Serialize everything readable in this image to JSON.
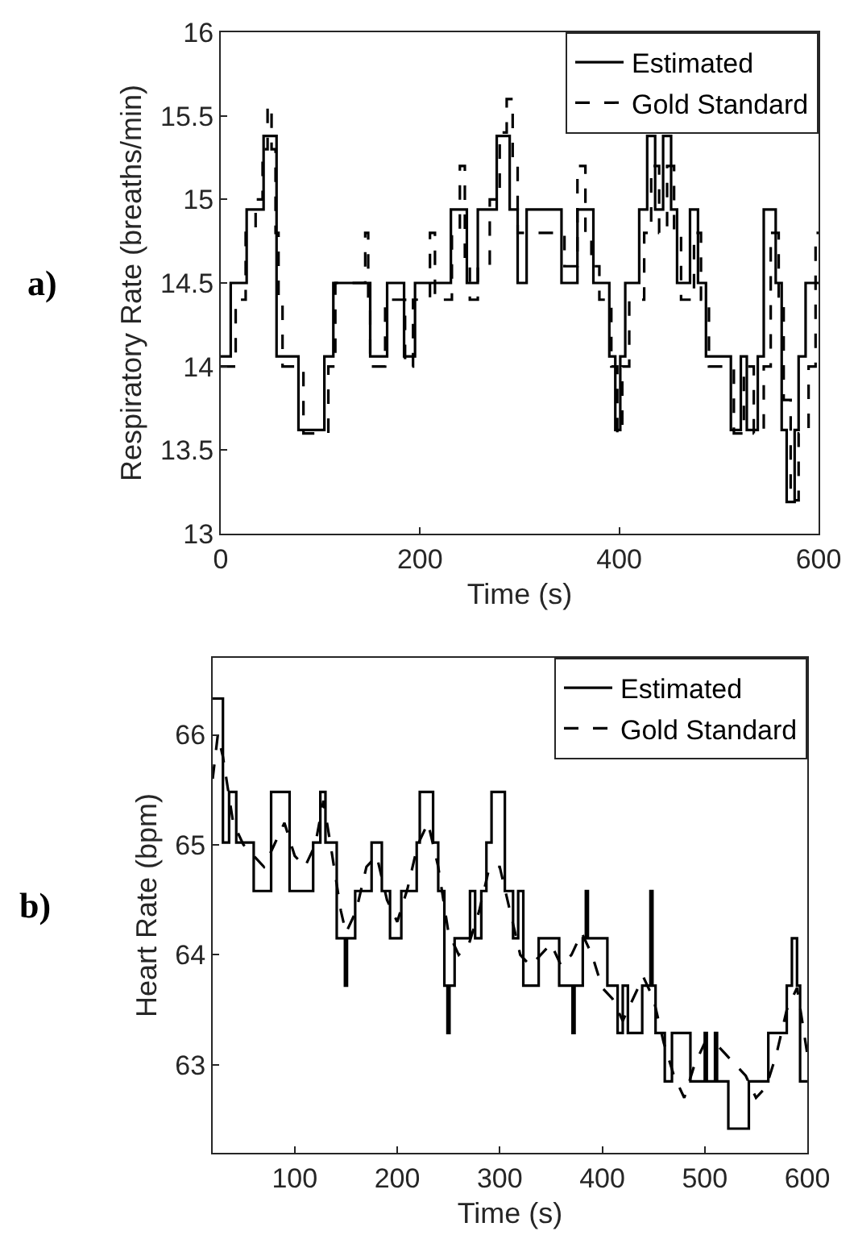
{
  "chart_data": [
    {
      "type": "step",
      "xlabel": "Time (s)",
      "ylabel": "Respiratory Rate (breaths/min)",
      "annotations": [
        "a)"
      ],
      "xlim": [
        0,
        600
      ],
      "xticks": [
        0,
        200,
        400,
        600
      ],
      "ylim": [
        13,
        16
      ],
      "yticks": [
        13,
        13.5,
        14,
        14.5,
        15,
        15.5,
        16
      ],
      "grid": false,
      "legend": "top right",
      "series": [
        {
          "name": "Estimated",
          "color": "#000000",
          "line_style": "solid",
          "x": [
            0,
            10,
            26,
            43,
            56,
            78,
            104,
            113,
            150,
            167,
            184,
            195,
            231,
            247,
            258,
            277,
            290,
            298,
            307,
            342,
            358,
            374,
            390,
            396,
            401,
            406,
            420,
            428,
            436,
            444,
            452,
            458,
            471,
            479,
            487,
            512,
            522,
            528,
            539,
            545,
            557,
            563,
            568,
            576,
            580,
            587,
            600
          ],
          "values": [
            14.06,
            14.5,
            14.94,
            15.38,
            14.06,
            13.62,
            14.06,
            14.5,
            14.06,
            14.5,
            14.06,
            14.5,
            14.94,
            14.5,
            14.94,
            15.38,
            14.94,
            14.5,
            14.94,
            14.5,
            14.94,
            14.5,
            14.06,
            13.62,
            14.06,
            14.5,
            14.94,
            15.38,
            14.94,
            15.38,
            14.94,
            14.5,
            14.94,
            14.5,
            14.06,
            13.62,
            14.06,
            13.62,
            14.06,
            14.94,
            14.5,
            13.62,
            13.19,
            13.62,
            14.06,
            14.5,
            14.5
          ]
        },
        {
          "name": "Gold Standard",
          "color": "#000000",
          "line_style": "dashed",
          "x": [
            0,
            15,
            25,
            35,
            42,
            47,
            51,
            55,
            58,
            62,
            83,
            108,
            115,
            145,
            148,
            150,
            165,
            185,
            193,
            210,
            215,
            232,
            240,
            245,
            250,
            258,
            270,
            280,
            287,
            293,
            298,
            345,
            358,
            366,
            372,
            380,
            392,
            398,
            403,
            410,
            425,
            432,
            440,
            448,
            455,
            462,
            475,
            482,
            490,
            515,
            525,
            535,
            545,
            552,
            560,
            565,
            572,
            580,
            590,
            597,
            600
          ],
          "values": [
            14.0,
            14.4,
            14.8,
            15.0,
            15.3,
            15.56,
            15.3,
            14.8,
            14.4,
            14.0,
            13.6,
            14.0,
            14.5,
            14.8,
            14.4,
            14.0,
            14.4,
            14.0,
            14.4,
            14.8,
            14.4,
            14.8,
            15.2,
            14.6,
            14.4,
            14.6,
            15.0,
            15.4,
            15.6,
            15.2,
            14.8,
            14.6,
            15.2,
            14.8,
            14.6,
            14.4,
            14.0,
            13.6,
            14.0,
            14.4,
            14.8,
            15.2,
            14.8,
            15.2,
            14.8,
            14.4,
            14.8,
            14.4,
            14.0,
            13.6,
            14.0,
            13.6,
            14.0,
            14.8,
            14.4,
            13.8,
            13.2,
            13.6,
            14.0,
            14.8,
            14.8
          ]
        }
      ]
    },
    {
      "type": "line",
      "xlabel": "Time (s)",
      "ylabel": "Heart Rate (bpm)",
      "annotations": [
        "b)"
      ],
      "xlim": [
        20,
        600
      ],
      "xticks": [
        100,
        200,
        300,
        400,
        500,
        600
      ],
      "ylim": [
        62.2,
        66.7
      ],
      "yticks": [
        63,
        64,
        65,
        66
      ],
      "grid": false,
      "legend": "top right",
      "series": [
        {
          "name": "Estimated",
          "color": "#000000",
          "line_style": "solid",
          "type": "step",
          "x": [
            20,
            30,
            36,
            43,
            60,
            77,
            95,
            118,
            125,
            130,
            141,
            149,
            151,
            159,
            175,
            185,
            193,
            204,
            219,
            222,
            235,
            240,
            246,
            249,
            251,
            256,
            271,
            276,
            282,
            287,
            292,
            305,
            313,
            318,
            323,
            338,
            358,
            371,
            373,
            381,
            384,
            386,
            405,
            415,
            420,
            425,
            439,
            447,
            449,
            452,
            461,
            468,
            486,
            500,
            502,
            510,
            512,
            523,
            543,
            562,
            580,
            585,
            590,
            593,
            596,
            600
          ],
          "values": [
            66.33,
            65.02,
            65.48,
            65.02,
            64.58,
            65.48,
            64.58,
            65.02,
            65.48,
            65.02,
            64.15,
            63.72,
            64.15,
            64.58,
            65.02,
            64.58,
            64.15,
            64.58,
            65.02,
            65.48,
            65.02,
            64.58,
            63.72,
            63.29,
            63.72,
            64.15,
            64.58,
            64.15,
            64.58,
            65.02,
            65.48,
            64.58,
            64.15,
            64.58,
            63.72,
            64.15,
            63.72,
            63.29,
            63.72,
            64.15,
            64.58,
            64.15,
            63.72,
            63.29,
            63.72,
            63.29,
            63.72,
            64.58,
            63.72,
            63.29,
            62.85,
            63.29,
            62.85,
            63.29,
            62.85,
            63.29,
            62.85,
            62.42,
            62.85,
            63.29,
            63.72,
            64.15,
            63.72,
            62.85,
            62.85,
            62.85
          ]
        },
        {
          "name": "Gold Standard",
          "color": "#000000",
          "line_style": "dashed",
          "x": [
            20,
            25,
            30,
            40,
            50,
            60,
            70,
            80,
            90,
            100,
            110,
            120,
            128,
            135,
            145,
            150,
            160,
            170,
            180,
            190,
            200,
            210,
            220,
            230,
            240,
            250,
            260,
            270,
            280,
            290,
            300,
            310,
            320,
            330,
            340,
            350,
            360,
            370,
            380,
            390,
            400,
            410,
            420,
            430,
            440,
            450,
            460,
            470,
            480,
            490,
            500,
            510,
            520,
            530,
            540,
            550,
            560,
            570,
            580,
            590,
            600
          ],
          "values": [
            65.6,
            66.0,
            65.8,
            65.2,
            65.0,
            64.9,
            64.8,
            65.0,
            65.2,
            64.9,
            64.8,
            65.0,
            65.4,
            65.0,
            64.4,
            64.2,
            64.4,
            64.8,
            64.9,
            64.5,
            64.3,
            64.6,
            65.0,
            65.2,
            64.8,
            64.2,
            64.0,
            64.1,
            64.4,
            64.8,
            64.8,
            64.4,
            64.0,
            63.9,
            64.0,
            64.1,
            63.9,
            64.0,
            64.2,
            64.0,
            63.7,
            63.6,
            63.4,
            63.6,
            63.8,
            63.6,
            63.2,
            62.9,
            62.7,
            63.0,
            63.2,
            63.2,
            63.1,
            63.0,
            62.9,
            62.7,
            62.8,
            63.1,
            63.5,
            63.7,
            63.1
          ]
        }
      ]
    }
  ]
}
